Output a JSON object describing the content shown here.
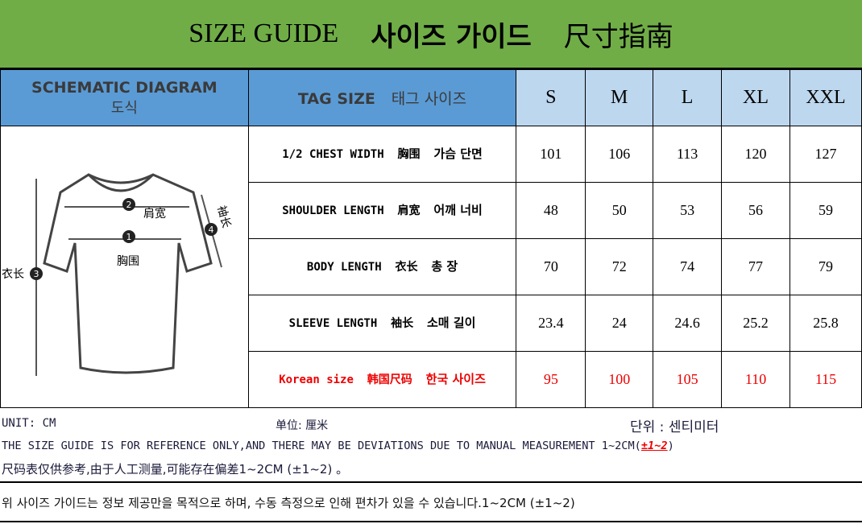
{
  "title": {
    "en": "SIZE GUIDE",
    "ko": "사이즈 가이드",
    "zh": "尺寸指南"
  },
  "header": {
    "diagram_en": "SCHEMATIC DIAGRAM",
    "diagram_ko": "도식",
    "tag_en": "TAG SIZE",
    "tag_ko": "태그 사이즈",
    "sizes": [
      "S",
      "M",
      "L",
      "XL",
      "XXL"
    ]
  },
  "diagram": {
    "labels": {
      "shoulder": "肩宽",
      "chest": "胸围",
      "length": "衣长",
      "sleeve": "袖长"
    },
    "numbers": [
      "1",
      "2",
      "3",
      "4"
    ]
  },
  "rows": [
    {
      "en": "1/2 CHEST WIDTH",
      "zh": "胸围",
      "ko": "가슴 단면",
      "values": [
        "101",
        "106",
        "113",
        "120",
        "127"
      ]
    },
    {
      "en": "SHOULDER LENGTH",
      "zh": "肩宽",
      "ko": "어깨 너비",
      "values": [
        "48",
        "50",
        "53",
        "56",
        "59"
      ]
    },
    {
      "en": "BODY LENGTH",
      "zh": "衣长",
      "ko": "총 장",
      "values": [
        "70",
        "72",
        "74",
        "77",
        "79"
      ]
    },
    {
      "en": "SLEEVE LENGTH",
      "zh": "袖长",
      "ko": "소매 길이",
      "values": [
        "23.4",
        "24",
        "24.6",
        "25.2",
        "25.8"
      ]
    },
    {
      "en": "Korean size",
      "zh": "韩国尺码",
      "ko": "한국 사이즈",
      "values": [
        "95",
        "100",
        "105",
        "110",
        "115"
      ]
    }
  ],
  "footer": {
    "unit_en": "UNIT: CM",
    "unit_zh": "单位: 厘米",
    "unit_ko": "단위 : 센티미터",
    "note_en": "THE SIZE GUIDE IS FOR REFERENCE ONLY,AND THERE MAY BE DEVIATIONS DUE TO MANUAL MEASUREMENT 1~2CM(",
    "note_en_pm": "±1~2",
    "note_en_end": ")",
    "note_zh": "尺码表仅供参考,由于人工测量,可能存在偏差1~2CM (±1~2) 。",
    "note_ko": "위 사이즈 가이드는 정보 제공만을 목적으로 하며, 수동 측정으로 인해 편차가 있을 수 있습니다.1~2CM (±1~2)"
  },
  "colors": {
    "title_bg": "#70ad47",
    "header_bg": "#5b9bd5",
    "size_bg": "#bdd7ee",
    "korean_row": "#ee0000"
  }
}
